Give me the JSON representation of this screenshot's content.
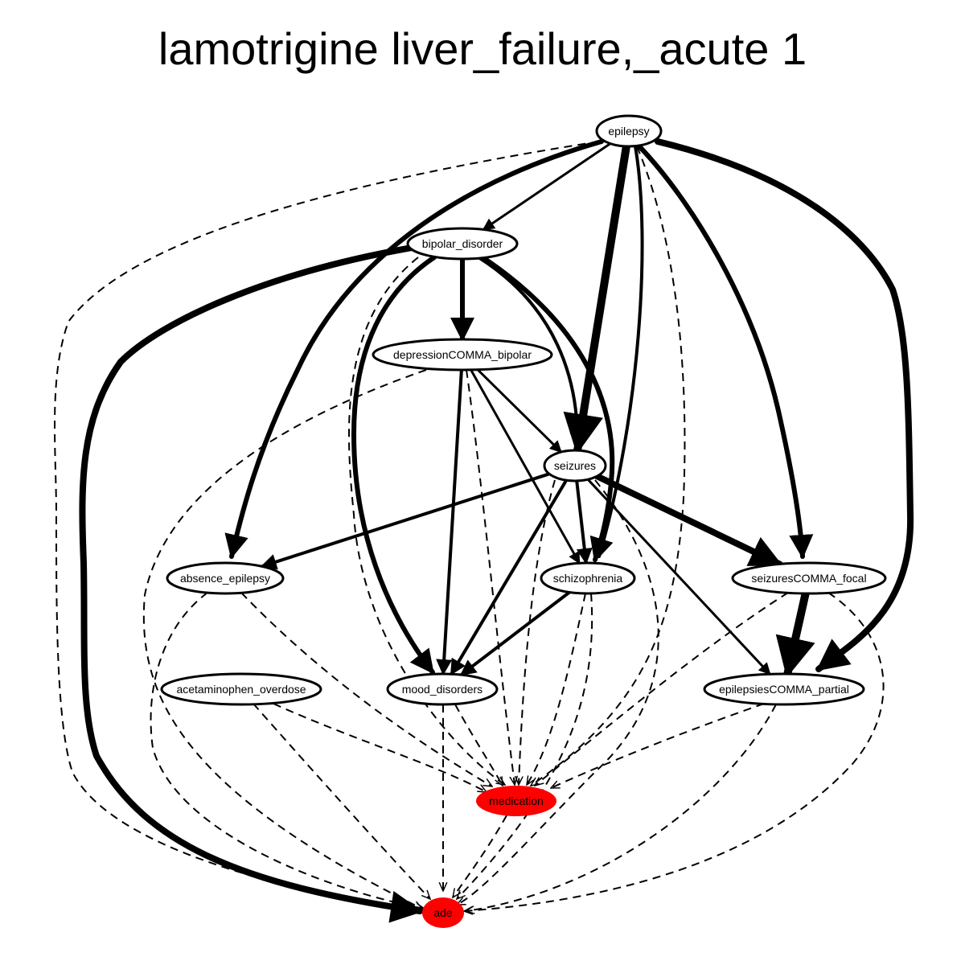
{
  "title": "lamotrigine liver_failure,_acute 1",
  "colors": {
    "default_node_fill": "#ffffff",
    "highlight_node_fill": "#ff0000",
    "edge": "#000000"
  },
  "nodes": [
    {
      "id": "epilepsy",
      "label": "epilepsy",
      "highlight": false
    },
    {
      "id": "bipolar_disorder",
      "label": "bipolar_disorder",
      "highlight": false
    },
    {
      "id": "depressionCOMMA_bipolar",
      "label": "depressionCOMMA_bipolar",
      "highlight": false
    },
    {
      "id": "seizures",
      "label": "seizures",
      "highlight": false
    },
    {
      "id": "absence_epilepsy",
      "label": "absence_epilepsy",
      "highlight": false
    },
    {
      "id": "schizophrenia",
      "label": "schizophrenia",
      "highlight": false
    },
    {
      "id": "seizuresCOMMA_focal",
      "label": "seizuresCOMMA_focal",
      "highlight": false
    },
    {
      "id": "acetaminophen_overdose",
      "label": "acetaminophen_overdose",
      "highlight": false
    },
    {
      "id": "mood_disorders",
      "label": "mood_disorders",
      "highlight": false
    },
    {
      "id": "epilepsiesCOMMA_partial",
      "label": "epilepsiesCOMMA_partial",
      "highlight": false
    },
    {
      "id": "medication",
      "label": "medication",
      "highlight": true
    },
    {
      "id": "ade",
      "label": "ade",
      "highlight": true
    }
  ],
  "edges": [
    {
      "from": "epilepsy",
      "to": "bipolar_disorder",
      "style": "solid",
      "weight": 3
    },
    {
      "from": "epilepsy",
      "to": "seizures",
      "style": "solid",
      "weight": 10
    },
    {
      "from": "epilepsy",
      "to": "absence_epilepsy",
      "style": "solid",
      "weight": 6
    },
    {
      "from": "epilepsy",
      "to": "schizophrenia",
      "style": "solid",
      "weight": 4
    },
    {
      "from": "epilepsy",
      "to": "seizuresCOMMA_focal",
      "style": "solid",
      "weight": 6
    },
    {
      "from": "epilepsy",
      "to": "epilepsiesCOMMA_partial",
      "style": "solid",
      "weight": 8
    },
    {
      "from": "epilepsy",
      "to": "ade",
      "style": "dashed",
      "weight": 2
    },
    {
      "from": "epilepsy",
      "to": "medication",
      "style": "dashed",
      "weight": 2
    },
    {
      "from": "bipolar_disorder",
      "to": "depressionCOMMA_bipolar",
      "style": "solid",
      "weight": 6
    },
    {
      "from": "bipolar_disorder",
      "to": "seizures",
      "style": "solid",
      "weight": 4
    },
    {
      "from": "bipolar_disorder",
      "to": "schizophrenia",
      "style": "solid",
      "weight": 6
    },
    {
      "from": "bipolar_disorder",
      "to": "mood_disorders",
      "style": "solid",
      "weight": 6
    },
    {
      "from": "bipolar_disorder",
      "to": "ade",
      "style": "solid",
      "weight": 8
    },
    {
      "from": "bipolar_disorder",
      "to": "medication",
      "style": "dashed",
      "weight": 2
    },
    {
      "from": "depressionCOMMA_bipolar",
      "to": "seizures",
      "style": "solid",
      "weight": 3
    },
    {
      "from": "depressionCOMMA_bipolar",
      "to": "schizophrenia",
      "style": "solid",
      "weight": 3
    },
    {
      "from": "depressionCOMMA_bipolar",
      "to": "mood_disorders",
      "style": "solid",
      "weight": 4
    },
    {
      "from": "depressionCOMMA_bipolar",
      "to": "medication",
      "style": "dashed",
      "weight": 2
    },
    {
      "from": "depressionCOMMA_bipolar",
      "to": "ade",
      "style": "dashed",
      "weight": 2
    },
    {
      "from": "seizures",
      "to": "absence_epilepsy",
      "style": "solid",
      "weight": 4
    },
    {
      "from": "seizures",
      "to": "schizophrenia",
      "style": "solid",
      "weight": 4
    },
    {
      "from": "seizures",
      "to": "seizuresCOMMA_focal",
      "style": "solid",
      "weight": 8
    },
    {
      "from": "seizures",
      "to": "mood_disorders",
      "style": "solid",
      "weight": 4
    },
    {
      "from": "seizures",
      "to": "epilepsiesCOMMA_partial",
      "style": "solid",
      "weight": 3
    },
    {
      "from": "seizures",
      "to": "medication",
      "style": "dashed",
      "weight": 2
    },
    {
      "from": "seizures",
      "to": "ade",
      "style": "dashed",
      "weight": 2
    },
    {
      "from": "absence_epilepsy",
      "to": "medication",
      "style": "dashed",
      "weight": 2
    },
    {
      "from": "absence_epilepsy",
      "to": "ade",
      "style": "dashed",
      "weight": 2
    },
    {
      "from": "schizophrenia",
      "to": "mood_disorders",
      "style": "solid",
      "weight": 4
    },
    {
      "from": "schizophrenia",
      "to": "medication",
      "style": "dashed",
      "weight": 2
    },
    {
      "from": "schizophrenia",
      "to": "ade",
      "style": "dashed",
      "weight": 2
    },
    {
      "from": "seizuresCOMMA_focal",
      "to": "epilepsiesCOMMA_partial",
      "style": "solid",
      "weight": 10
    },
    {
      "from": "seizuresCOMMA_focal",
      "to": "medication",
      "style": "dashed",
      "weight": 2
    },
    {
      "from": "seizuresCOMMA_focal",
      "to": "ade",
      "style": "dashed",
      "weight": 2
    },
    {
      "from": "acetaminophen_overdose",
      "to": "medication",
      "style": "dashed",
      "weight": 2
    },
    {
      "from": "acetaminophen_overdose",
      "to": "ade",
      "style": "dashed",
      "weight": 2
    },
    {
      "from": "mood_disorders",
      "to": "medication",
      "style": "dashed",
      "weight": 2
    },
    {
      "from": "mood_disorders",
      "to": "ade",
      "style": "dashed",
      "weight": 2
    },
    {
      "from": "epilepsiesCOMMA_partial",
      "to": "medication",
      "style": "dashed",
      "weight": 2
    },
    {
      "from": "epilepsiesCOMMA_partial",
      "to": "ade",
      "style": "dashed",
      "weight": 2
    },
    {
      "from": "medication",
      "to": "ade",
      "style": "dashed",
      "weight": 2
    }
  ]
}
